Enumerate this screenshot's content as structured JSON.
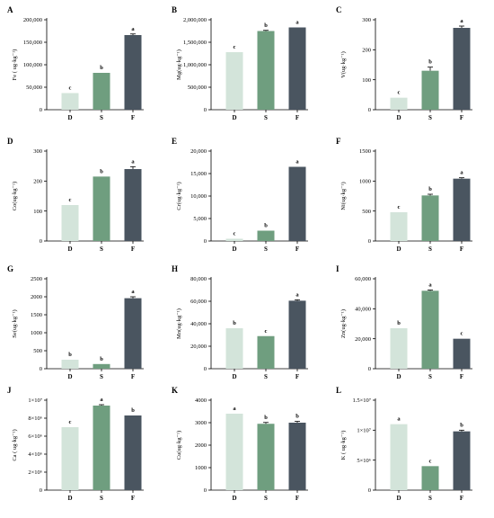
{
  "figure_colors": {
    "D": "#d3e4da",
    "S": "#6f9e7f",
    "F": "#4a5560"
  },
  "chart_data": [
    {
      "type": "bar",
      "panel": "A",
      "ylabel": "Fe ( ug·kg⁻¹)",
      "categories": [
        "D",
        "S",
        "F"
      ],
      "values": [
        37000,
        82000,
        166000
      ],
      "errors": [
        0,
        0,
        2500
      ],
      "significance": [
        "c",
        "b",
        "a"
      ],
      "ylim": [
        0,
        200000
      ],
      "yticks": [
        0,
        50000,
        100000,
        150000,
        200000
      ],
      "ytick_labels": [
        "0",
        "50,000",
        "100,000",
        "150,000",
        "200,000"
      ]
    },
    {
      "type": "bar",
      "panel": "B",
      "ylabel": "Mg(ug·kg⁻¹)",
      "categories": [
        "D",
        "S",
        "F"
      ],
      "values": [
        1280000,
        1750000,
        1830000
      ],
      "errors": [
        0,
        15000,
        0
      ],
      "significance": [
        "c",
        "b",
        "a"
      ],
      "ylim": [
        0,
        2000000
      ],
      "yticks": [
        0,
        500000,
        1000000,
        1500000,
        2000000
      ],
      "ytick_labels": [
        "0",
        "500,000",
        "1,000,000",
        "1,500,000",
        "2,000,000"
      ]
    },
    {
      "type": "bar",
      "panel": "C",
      "ylabel": "V(ug·kg⁻¹)",
      "categories": [
        "D",
        "S",
        "F"
      ],
      "values": [
        40,
        130,
        273
      ],
      "errors": [
        0,
        12,
        6
      ],
      "significance": [
        "c",
        "b",
        "a"
      ],
      "ylim": [
        0,
        300
      ],
      "yticks": [
        0,
        100,
        200,
        300
      ],
      "ytick_labels": [
        "0",
        "100",
        "200",
        "300"
      ]
    },
    {
      "type": "bar",
      "panel": "D",
      "ylabel": "Co(ug·kg⁻¹)",
      "categories": [
        "D",
        "S",
        "F"
      ],
      "values": [
        120,
        215,
        240
      ],
      "errors": [
        0,
        0,
        8
      ],
      "significance": [
        "c",
        "b",
        "a"
      ],
      "ylim": [
        0,
        300
      ],
      "yticks": [
        0,
        100,
        200,
        300
      ],
      "ytick_labels": [
        "0",
        "100",
        "200",
        "300"
      ]
    },
    {
      "type": "bar",
      "panel": "E",
      "ylabel": "Cr(ug·kg⁻¹)",
      "categories": [
        "D",
        "S",
        "F"
      ],
      "values": [
        500,
        2300,
        16500
      ],
      "errors": [
        0,
        0,
        0
      ],
      "significance": [
        "c",
        "b",
        "a"
      ],
      "ylim": [
        0,
        20000
      ],
      "yticks": [
        0,
        5000,
        10000,
        15000,
        20000
      ],
      "ytick_labels": [
        "0",
        "5,000",
        "10,000",
        "15,000",
        "20,000"
      ]
    },
    {
      "type": "bar",
      "panel": "F",
      "ylabel": "Ni(ug·kg⁻¹)",
      "categories": [
        "D",
        "S",
        "F"
      ],
      "values": [
        480,
        760,
        1040
      ],
      "errors": [
        0,
        20,
        15
      ],
      "significance": [
        "c",
        "b",
        "a"
      ],
      "ylim": [
        0,
        1500
      ],
      "yticks": [
        0,
        500,
        1000,
        1500
      ],
      "ytick_labels": [
        "0",
        "500",
        "1000",
        "1500"
      ]
    },
    {
      "type": "bar",
      "panel": "G",
      "ylabel": "Se(ug·kg⁻¹)",
      "categories": [
        "D",
        "S",
        "F"
      ],
      "values": [
        250,
        130,
        1960
      ],
      "errors": [
        0,
        0,
        40
      ],
      "significance": [
        "b",
        "b",
        "a"
      ],
      "ylim": [
        0,
        2500
      ],
      "yticks": [
        0,
        500,
        1000,
        1500,
        2000,
        2500
      ],
      "ytick_labels": [
        "0",
        "500",
        "1000",
        "1500",
        "2000",
        "2500"
      ]
    },
    {
      "type": "bar",
      "panel": "H",
      "ylabel": "Mn(ug·kg⁻¹)",
      "categories": [
        "D",
        "S",
        "F"
      ],
      "values": [
        36000,
        29000,
        60500
      ],
      "errors": [
        0,
        0,
        800
      ],
      "significance": [
        "b",
        "c",
        "a"
      ],
      "ylim": [
        0,
        80000
      ],
      "yticks": [
        0,
        20000,
        40000,
        60000,
        80000
      ],
      "ytick_labels": [
        "0",
        "20,000",
        "40,000",
        "60,000",
        "80,000"
      ]
    },
    {
      "type": "bar",
      "panel": "I",
      "ylabel": "Zn(ug·kg⁻¹)",
      "categories": [
        "D",
        "S",
        "F"
      ],
      "values": [
        27000,
        52000,
        20000
      ],
      "errors": [
        0,
        500,
        0
      ],
      "significance": [
        "b",
        "a",
        "c"
      ],
      "ylim": [
        0,
        60000
      ],
      "yticks": [
        0,
        20000,
        40000,
        60000
      ],
      "ytick_labels": [
        "0",
        "20,000",
        "40,000",
        "60,000"
      ]
    },
    {
      "type": "bar",
      "panel": "J",
      "ylabel": "Ca ( ug·kg⁻¹)",
      "categories": [
        "D",
        "S",
        "F"
      ],
      "values": [
        7000000,
        9400000,
        8300000
      ],
      "errors": [
        0,
        100000,
        0
      ],
      "significance": [
        "c",
        "a",
        "b"
      ],
      "ylim": [
        0,
        10000000
      ],
      "yticks": [
        0,
        2000000,
        4000000,
        6000000,
        8000000,
        10000000
      ],
      "ytick_labels": [
        "0",
        "2×10⁶",
        "4×10⁶",
        "6×10⁶",
        "8×10⁶",
        "1×10⁷"
      ]
    },
    {
      "type": "bar",
      "panel": "K",
      "ylabel": "Cu(ug·kg⁻¹)",
      "categories": [
        "D",
        "S",
        "F"
      ],
      "values": [
        3400,
        2950,
        3000
      ],
      "errors": [
        0,
        60,
        60
      ],
      "significance": [
        "a",
        "b",
        "b"
      ],
      "ylim": [
        0,
        4000
      ],
      "yticks": [
        0,
        1000,
        2000,
        3000,
        4000
      ],
      "ytick_labels": [
        "0",
        "1000",
        "2000",
        "3000",
        "4000"
      ]
    },
    {
      "type": "bar",
      "panel": "L",
      "ylabel": "K ( ug·kg⁻¹)",
      "categories": [
        "D",
        "S",
        "F"
      ],
      "values": [
        11000000,
        4000000,
        9800000
      ],
      "errors": [
        0,
        0,
        200000
      ],
      "significance": [
        "a",
        "c",
        "b"
      ],
      "ylim": [
        0,
        15000000
      ],
      "yticks": [
        0,
        5000000,
        10000000,
        15000000
      ],
      "ytick_labels": [
        "0",
        "5×10⁶",
        "1×10⁷",
        "1.5×10⁷"
      ]
    }
  ]
}
